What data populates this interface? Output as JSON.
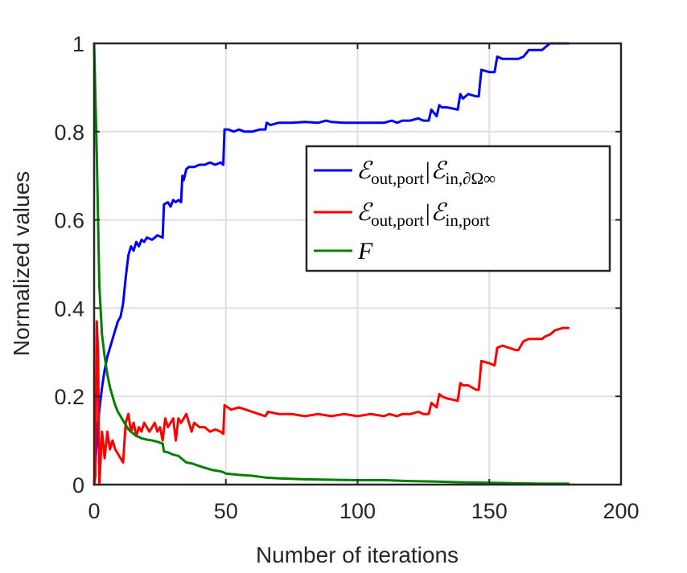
{
  "chart_data": {
    "type": "line",
    "title": "",
    "xlabel": "Number of iterations",
    "ylabel": "Normalized values",
    "xlim": [
      0,
      200
    ],
    "ylim": [
      0,
      1
    ],
    "xticks": [
      "0",
      "50",
      "100",
      "150",
      "200"
    ],
    "yticks": [
      "0",
      "0.2",
      "0.4",
      "0.6",
      "0.8",
      "1"
    ],
    "grid": true,
    "legend_position": "upper-right",
    "series": [
      {
        "name": "ℰout,port|ℰin,∂Ω∞",
        "legend_main": "ℰ",
        "legend_sub1": "out,port",
        "legend_bar": "|ℰ",
        "legend_sub2": "in,∂Ω∞",
        "color": "#0000ff",
        "x": [
          0,
          1,
          2,
          3,
          4,
          5,
          6,
          7,
          8,
          9,
          10,
          11,
          12,
          13,
          14,
          15,
          16,
          17,
          18,
          19,
          20,
          22,
          24,
          26,
          26.5,
          28,
          29,
          30,
          31,
          32,
          33,
          33.5,
          34,
          35,
          36,
          38,
          40,
          42,
          44,
          46,
          48,
          49,
          49.5,
          51,
          53,
          55,
          57,
          60,
          63,
          65,
          65.5,
          67,
          70,
          75,
          80,
          85,
          88,
          90,
          95,
          100,
          105,
          110,
          113,
          115,
          117,
          120,
          123,
          125,
          127,
          128,
          130,
          131,
          132,
          134,
          138,
          139,
          140,
          142,
          145,
          146,
          147,
          150,
          152,
          153,
          155,
          160,
          161,
          163,
          165,
          170,
          171,
          173,
          175,
          178,
          180
        ],
        "y": [
          0.0,
          0.1,
          0.17,
          0.22,
          0.26,
          0.29,
          0.31,
          0.33,
          0.35,
          0.37,
          0.38,
          0.41,
          0.47,
          0.52,
          0.54,
          0.53,
          0.55,
          0.54,
          0.555,
          0.55,
          0.56,
          0.555,
          0.565,
          0.56,
          0.635,
          0.64,
          0.63,
          0.645,
          0.64,
          0.645,
          0.64,
          0.7,
          0.69,
          0.715,
          0.72,
          0.72,
          0.725,
          0.725,
          0.73,
          0.725,
          0.73,
          0.725,
          0.805,
          0.805,
          0.8,
          0.805,
          0.8,
          0.8,
          0.805,
          0.805,
          0.82,
          0.815,
          0.82,
          0.82,
          0.822,
          0.82,
          0.825,
          0.822,
          0.82,
          0.82,
          0.82,
          0.82,
          0.825,
          0.82,
          0.825,
          0.825,
          0.83,
          0.825,
          0.825,
          0.85,
          0.835,
          0.86,
          0.855,
          0.855,
          0.85,
          0.885,
          0.875,
          0.885,
          0.88,
          0.88,
          0.94,
          0.935,
          0.935,
          0.97,
          0.965,
          0.965,
          0.965,
          0.97,
          0.985,
          0.985,
          0.99,
          1.0,
          1.0,
          1.0,
          1.0
        ]
      },
      {
        "name": "ℰout,port|ℰin,port",
        "legend_main": "ℰ",
        "legend_sub1": "out,port",
        "legend_bar": "|ℰ",
        "legend_sub2": "in,port",
        "color": "#ff0000",
        "x": [
          0,
          0.5,
          1,
          1.5,
          2,
          3,
          4,
          5,
          6,
          7,
          8,
          9,
          10,
          11,
          12,
          13,
          14,
          15,
          16,
          17,
          18,
          19,
          20,
          21,
          22,
          23,
          24,
          25,
          26,
          27,
          28,
          29,
          30,
          31,
          32,
          33,
          34,
          35,
          36,
          37,
          38,
          40,
          42,
          44,
          46,
          48,
          49,
          49.5,
          52,
          55,
          60,
          65,
          66,
          70,
          75,
          80,
          85,
          90,
          95,
          100,
          105,
          110,
          112,
          115,
          117,
          120,
          123,
          125,
          127,
          128,
          130,
          131,
          132,
          134,
          138,
          139,
          140,
          142,
          145,
          146,
          147,
          150,
          152,
          153,
          155,
          160,
          161,
          163,
          165,
          170,
          171,
          173,
          175,
          178,
          180
        ],
        "y": [
          0.0,
          0.02,
          0.37,
          0.3,
          0.0,
          0.12,
          0.06,
          0.12,
          0.08,
          0.1,
          0.08,
          0.07,
          0.06,
          0.05,
          0.14,
          0.16,
          0.12,
          0.14,
          0.11,
          0.13,
          0.12,
          0.14,
          0.13,
          0.12,
          0.13,
          0.14,
          0.12,
          0.13,
          0.1,
          0.15,
          0.13,
          0.14,
          0.15,
          0.1,
          0.15,
          0.14,
          0.15,
          0.16,
          0.14,
          0.12,
          0.14,
          0.13,
          0.13,
          0.12,
          0.125,
          0.12,
          0.115,
          0.18,
          0.17,
          0.175,
          0.165,
          0.155,
          0.165,
          0.16,
          0.16,
          0.155,
          0.16,
          0.155,
          0.16,
          0.155,
          0.16,
          0.155,
          0.16,
          0.155,
          0.16,
          0.16,
          0.165,
          0.16,
          0.16,
          0.185,
          0.175,
          0.205,
          0.2,
          0.195,
          0.19,
          0.23,
          0.225,
          0.225,
          0.215,
          0.215,
          0.28,
          0.275,
          0.27,
          0.31,
          0.315,
          0.305,
          0.305,
          0.325,
          0.33,
          0.33,
          0.335,
          0.34,
          0.35,
          0.355,
          0.355
        ]
      },
      {
        "name": "F",
        "legend_main": "F",
        "color": "#008000",
        "x": [
          0,
          1,
          2,
          3,
          4,
          5,
          6,
          7,
          8,
          9,
          10,
          11,
          12,
          13,
          14,
          15,
          16,
          17,
          18,
          20,
          22,
          24,
          25,
          26,
          26.5,
          28,
          30,
          32,
          33,
          34,
          35,
          37,
          40,
          42,
          45,
          48,
          49,
          50,
          55,
          60,
          65,
          70,
          80,
          90,
          100,
          110,
          120,
          130,
          140,
          150,
          160,
          170,
          180
        ],
        "y": [
          1.0,
          0.75,
          0.45,
          0.34,
          0.29,
          0.25,
          0.22,
          0.2,
          0.18,
          0.165,
          0.155,
          0.145,
          0.135,
          0.125,
          0.12,
          0.115,
          0.11,
          0.108,
          0.105,
          0.102,
          0.1,
          0.097,
          0.095,
          0.093,
          0.075,
          0.073,
          0.068,
          0.065,
          0.06,
          0.055,
          0.05,
          0.048,
          0.042,
          0.038,
          0.033,
          0.03,
          0.028,
          0.025,
          0.022,
          0.02,
          0.016,
          0.014,
          0.012,
          0.011,
          0.01,
          0.01,
          0.008,
          0.007,
          0.005,
          0.004,
          0.003,
          0.002,
          0.002
        ]
      }
    ]
  }
}
